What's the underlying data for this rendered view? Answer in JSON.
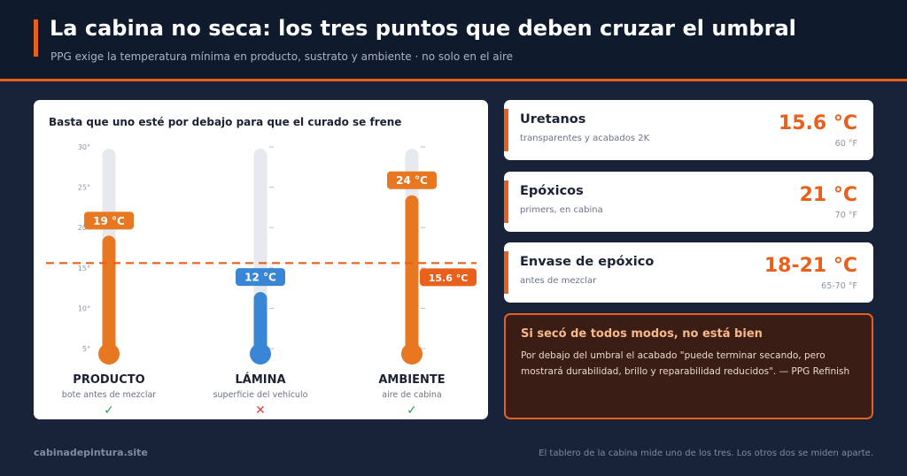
{
  "header": {
    "title": "La cabina no seca: los tres puntos que deben cruzar el umbral",
    "subtitle": "PPG exige la temperatura mínima en producto, sustrato y ambiente  ·  no solo en el aire"
  },
  "panel": {
    "title": "Basta que uno esté por debajo para que el curado se frene",
    "scale_ticks": [
      "30°",
      "25°",
      "20°",
      "15°",
      "10°",
      "5°"
    ],
    "threshold_value": 15.6,
    "threshold_label": "15.6 °C",
    "thermometers": [
      {
        "name": "PRODUCTO",
        "desc": "bote antes de mezclar",
        "value": 19,
        "label": "19 °C",
        "mark": "✓",
        "color": "#e87722",
        "mark_color": "#2a9a5a"
      },
      {
        "name": "LÁMINA",
        "desc": "superficie del vehículo",
        "value": 12,
        "label": "12 °C",
        "mark": "✕",
        "color": "#3a86d6",
        "mark_color": "#d9413a"
      },
      {
        "name": "AMBIENTE",
        "desc": "aire de cabina",
        "value": 24,
        "label": "24 °C",
        "mark": "✓",
        "color": "#e87722",
        "mark_color": "#2a9a5a"
      }
    ]
  },
  "cards": [
    {
      "name": "Uretanos",
      "desc": "transparentes y acabados 2K",
      "value": "15.6 °C",
      "fvalue": "60 °F"
    },
    {
      "name": "Epóxicos",
      "desc": "primers, en cabina",
      "value": "21 °C",
      "fvalue": "70 °F"
    },
    {
      "name": "Envase de epóxico",
      "desc": "antes de mezclar",
      "value": "18-21 °C",
      "fvalue": "65-70 °F"
    }
  ],
  "warning": {
    "title": "Si secó de todos modos, no está bien",
    "text": "Por debajo del umbral el acabado \"puede terminar secando, pero mostrará durabilidad, brillo y reparabilidad reducidos\".  — PPG Refinish"
  },
  "footer": {
    "site": "cabinadepintura.site",
    "note": "El tablero de la cabina mide uno de los tres. Los otros dos se miden aparte."
  },
  "colors": {
    "accent": "#e8601c",
    "cold": "#3a86d6",
    "warm": "#e87722"
  }
}
